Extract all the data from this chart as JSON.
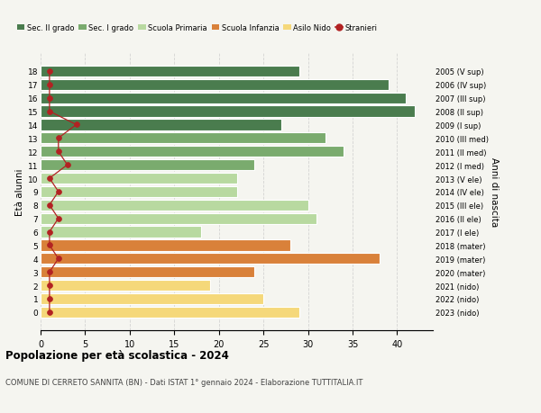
{
  "ages": [
    18,
    17,
    16,
    15,
    14,
    13,
    12,
    11,
    10,
    9,
    8,
    7,
    6,
    5,
    4,
    3,
    2,
    1,
    0
  ],
  "right_labels": [
    "2005 (V sup)",
    "2006 (IV sup)",
    "2007 (III sup)",
    "2008 (II sup)",
    "2009 (I sup)",
    "2010 (III med)",
    "2011 (II med)",
    "2012 (I med)",
    "2013 (V ele)",
    "2014 (IV ele)",
    "2015 (III ele)",
    "2016 (II ele)",
    "2017 (I ele)",
    "2018 (mater)",
    "2019 (mater)",
    "2020 (mater)",
    "2021 (nido)",
    "2022 (nido)",
    "2023 (nido)"
  ],
  "bar_values": [
    29,
    39,
    41,
    42,
    27,
    32,
    34,
    24,
    22,
    22,
    30,
    31,
    18,
    28,
    38,
    24,
    19,
    25,
    29
  ],
  "bar_colors": [
    "#4a7c4e",
    "#4a7c4e",
    "#4a7c4e",
    "#4a7c4e",
    "#4a7c4e",
    "#7aab6e",
    "#7aab6e",
    "#7aab6e",
    "#b8d9a0",
    "#b8d9a0",
    "#b8d9a0",
    "#b8d9a0",
    "#b8d9a0",
    "#d9813a",
    "#d9813a",
    "#d9813a",
    "#f5d87a",
    "#f5d87a",
    "#f5d87a"
  ],
  "stranieri_values": [
    1,
    1,
    1,
    1,
    4,
    2,
    2,
    3,
    1,
    2,
    1,
    2,
    1,
    1,
    2,
    1,
    1,
    1,
    1
  ],
  "stranieri_color": "#b22222",
  "legend_items": [
    {
      "label": "Sec. II grado",
      "color": "#4a7c4e"
    },
    {
      "label": "Sec. I grado",
      "color": "#7aab6e"
    },
    {
      "label": "Scuola Primaria",
      "color": "#b8d9a0"
    },
    {
      "label": "Scuola Infanzia",
      "color": "#d9813a"
    },
    {
      "label": "Asilo Nido",
      "color": "#f5d87a"
    },
    {
      "label": "Stranieri",
      "color": "#b22222"
    }
  ],
  "ylabel_left": "Età alunni",
  "ylabel_right": "Anni di nascita",
  "xlim": [
    0,
    44
  ],
  "xticks": [
    0,
    5,
    10,
    15,
    20,
    25,
    30,
    35,
    40
  ],
  "title": "Popolazione per età scolastica - 2024",
  "subtitle": "COMUNE DI CERRETO SANNITA (BN) - Dati ISTAT 1° gennaio 2024 - Elaborazione TUTTITALIA.IT",
  "bg_color": "#f5f5f0",
  "bar_alpha": 1.0,
  "grid_color": "#cccccc"
}
